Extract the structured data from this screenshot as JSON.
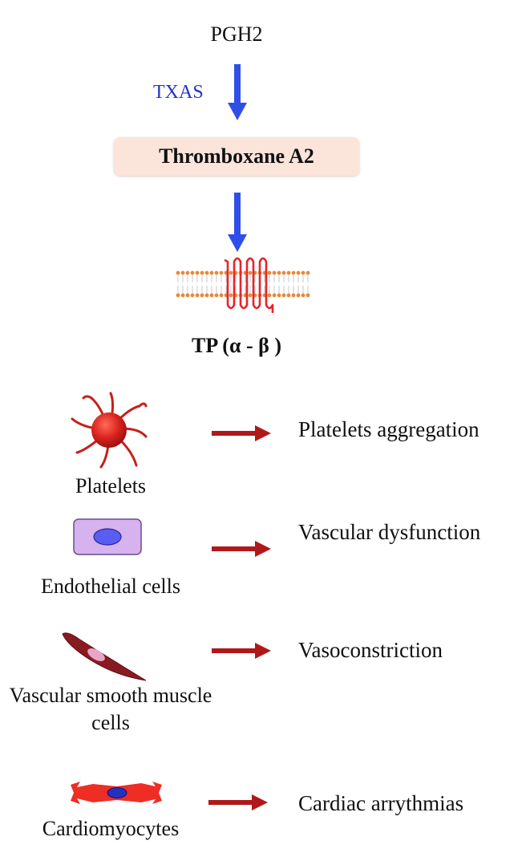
{
  "pathway": {
    "precursor": "PGH2",
    "enzyme": "TXAS",
    "product": "Thromboxane A2",
    "receptor": "TP (α - β )"
  },
  "colors": {
    "pathway_arrow": "#2f4fe8",
    "effect_arrow": "#b0181a",
    "enzyme_text": "#2233cc",
    "product_box": "#fbe4da",
    "receptor_helix": "#e8242a",
    "membrane_head": "#e8893a"
  },
  "targets": [
    {
      "cell": "Platelets",
      "effect": "Platelets aggregation",
      "icon": "platelet-icon"
    },
    {
      "cell": "Endothelial cells",
      "effect": "Vascular dysfunction",
      "icon": "endothelial-cell-icon"
    },
    {
      "cell": "Vascular smooth muscle cells",
      "effect": "Vasoconstriction",
      "icon": "smooth-muscle-cell-icon"
    },
    {
      "cell": "Cardiomyocytes",
      "effect": "Cardiac arrythmias",
      "icon": "cardiomyocyte-icon"
    }
  ]
}
